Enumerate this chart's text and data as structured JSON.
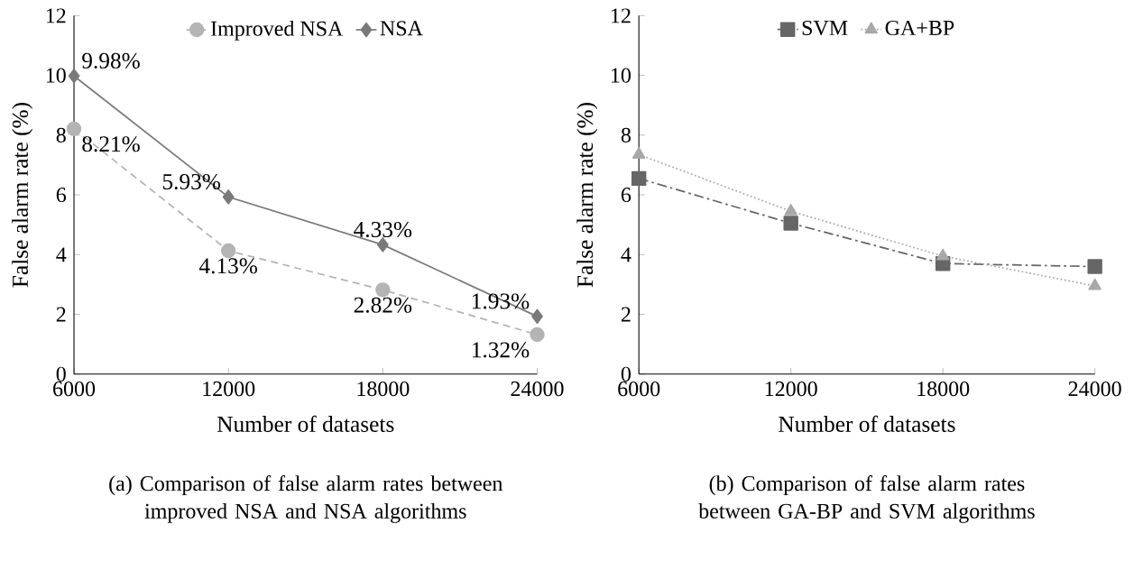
{
  "chart_data": [
    {
      "type": "line",
      "xlabel": "Number of datasets",
      "ylabel": "False alarm rate (%)",
      "x": [
        6000,
        12000,
        18000,
        24000
      ],
      "xlim": [
        6000,
        24000
      ],
      "xticks": [
        6000,
        12000,
        18000,
        24000
      ],
      "ylim": [
        0,
        12
      ],
      "yticks": [
        0,
        2,
        4,
        6,
        8,
        10,
        12
      ],
      "legend": "top",
      "grid": false,
      "series": [
        {
          "name": "Improved NSA",
          "color": "#b4b4b4",
          "marker": "circle",
          "line_style": "dashed",
          "values": [
            8.21,
            4.13,
            2.82,
            1.32
          ],
          "value_labels": [
            "8.21%",
            "4.13%",
            "2.82%",
            "1.32%"
          ]
        },
        {
          "name": "NSA",
          "color": "#7a7a7a",
          "marker": "diamond",
          "line_style": "solid",
          "values": [
            9.98,
            5.93,
            4.33,
            1.93
          ],
          "value_labels": [
            "9.98%",
            "5.93%",
            "4.33%",
            "1.93%"
          ]
        }
      ],
      "annotations": [
        "(a) Comparison of false alarm rates between improved NSA and NSA algorithms"
      ]
    },
    {
      "type": "line",
      "xlabel": "Number of datasets",
      "ylabel": "False alarm rate (%)",
      "x": [
        6000,
        12000,
        18000,
        24000
      ],
      "xlim": [
        6000,
        24000
      ],
      "xticks": [
        6000,
        12000,
        18000,
        24000
      ],
      "ylim": [
        0,
        12
      ],
      "yticks": [
        0,
        2,
        4,
        6,
        8,
        10,
        12
      ],
      "legend": "top",
      "grid": false,
      "series": [
        {
          "name": "SVM",
          "color": "#666666",
          "marker": "square",
          "line_style": "dashdot",
          "values": [
            6.55,
            5.05,
            3.7,
            3.6
          ]
        },
        {
          "name": "GA+BP",
          "color": "#a8a8a8",
          "marker": "triangle",
          "line_style": "dotted",
          "values": [
            7.35,
            5.45,
            3.95,
            2.95
          ]
        }
      ],
      "annotations": [
        "(b) Comparison of false alarm rates between GA-BP and SVM algorithms"
      ]
    }
  ]
}
